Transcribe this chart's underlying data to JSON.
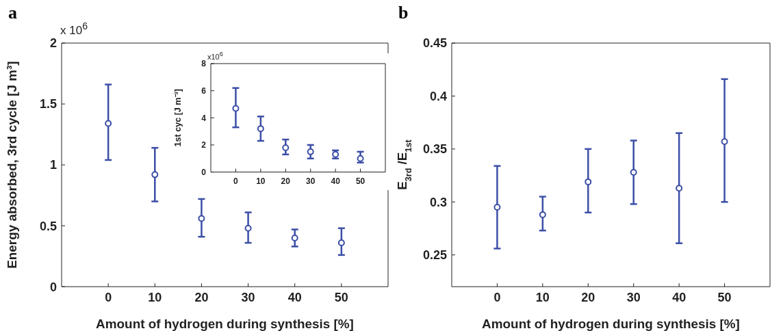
{
  "chart_data": [
    {
      "type": "scatter",
      "title": "a",
      "xlabel": "Amount of hydrogen during synthesis [%]",
      "ylabel": "Energy absorbed, 3rd cycle [J m³]",
      "annotations": [
        "x 10$^{6}$"
      ],
      "x": [
        0,
        10,
        20,
        30,
        40,
        50
      ],
      "xlim": [
        -10,
        60
      ],
      "xticks": [
        0,
        10,
        20,
        30,
        40,
        50
      ],
      "ylim": [
        0,
        2
      ],
      "yticks": [
        0,
        0.5,
        1,
        1.5,
        2
      ],
      "marker": "circle",
      "series": [
        {
          "color": "#3b4ea6",
          "values": [
            1.34,
            0.92,
            0.56,
            0.48,
            0.4,
            0.36
          ],
          "errors": [
            [
              1.04,
              1.66
            ],
            [
              0.7,
              1.14
            ],
            [
              0.41,
              0.72
            ],
            [
              0.36,
              0.61
            ],
            [
              0.33,
              0.47
            ],
            [
              0.26,
              0.48
            ]
          ]
        }
      ]
    },
    {
      "type": "scatter",
      "ylabel": "1st cyc [J m⁻³]",
      "annotations": [
        "x10$^{6}$"
      ],
      "x": [
        0,
        10,
        20,
        30,
        40,
        50
      ],
      "xlim": [
        -10,
        60
      ],
      "xticks": [
        0,
        10,
        20,
        30,
        40,
        50
      ],
      "ylim": [
        0,
        8
      ],
      "yticks": [
        0,
        2,
        4,
        6,
        8
      ],
      "marker": "circle",
      "series": [
        {
          "color": "#3b4ea6",
          "values": [
            4.7,
            3.2,
            1.8,
            1.5,
            1.3,
            1.0
          ],
          "errors": [
            [
              3.3,
              6.2
            ],
            [
              2.3,
              4.1
            ],
            [
              1.3,
              2.4
            ],
            [
              1.0,
              2.0
            ],
            [
              1.0,
              1.6
            ],
            [
              0.7,
              1.5
            ]
          ]
        }
      ]
    },
    {
      "type": "scatter",
      "title": "b",
      "xlabel": "Amount of hydrogen during synthesis [%]",
      "ylabel": "E$_{3rd}$/E$_{1st}$",
      "x": [
        0,
        10,
        20,
        30,
        40,
        50
      ],
      "xlim": [
        -10,
        60
      ],
      "xticks": [
        0,
        10,
        20,
        30,
        40,
        50
      ],
      "ylim": [
        0.22,
        0.45
      ],
      "yticks": [
        0.25,
        0.3,
        0.35,
        0.4,
        0.45
      ],
      "marker": "circle",
      "series": [
        {
          "color": "#3b4ea6",
          "values": [
            0.295,
            0.288,
            0.319,
            0.328,
            0.313,
            0.357
          ],
          "errors": [
            [
              0.256,
              0.334
            ],
            [
              0.273,
              0.305
            ],
            [
              0.29,
              0.35
            ],
            [
              0.298,
              0.358
            ],
            [
              0.261,
              0.365
            ],
            [
              0.3,
              0.416
            ]
          ]
        }
      ]
    }
  ]
}
